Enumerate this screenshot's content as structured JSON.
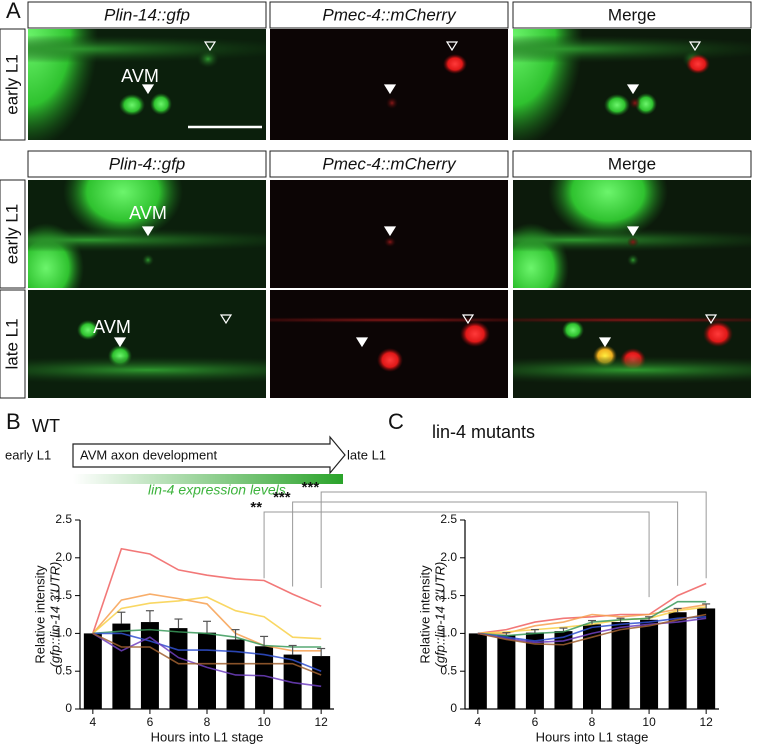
{
  "panel_a": {
    "label": "A",
    "header_rows": [
      [
        "Plin-14::gfp",
        "Pmec-4::mCherry",
        "Merge"
      ],
      [
        "Plin-4::gfp",
        "Pmec-4::mCherry",
        "Merge"
      ]
    ],
    "row_labels": [
      "early L1",
      "early L1",
      "late L1"
    ],
    "cell_labels": [
      "AVM",
      "AVM",
      "AVM"
    ]
  },
  "panel_b": {
    "label": "B",
    "title": "WT",
    "timeline": {
      "start": "early L1",
      "middle": "AVM axon development",
      "end": "late L1"
    },
    "gradient_label": "lin-4 expression levels"
  },
  "panel_c": {
    "label": "C",
    "title": "lin-4 mutants"
  },
  "significance": [
    "**",
    "***",
    "***"
  ],
  "chart_data": [
    {
      "type": "bar",
      "color": "#000000",
      "x": [
        4,
        5,
        6,
        7,
        8,
        9,
        10,
        11,
        12
      ],
      "values": [
        1.0,
        1.13,
        1.15,
        1.07,
        1.01,
        0.92,
        0.83,
        0.72,
        0.7
      ],
      "errors": [
        0,
        0.15,
        0.15,
        0.12,
        0.15,
        0.13,
        0.13,
        0.12,
        0.1
      ],
      "lines": [
        {
          "color": "#f06060",
          "values": [
            1.0,
            2.12,
            2.05,
            1.84,
            1.77,
            1.72,
            1.7,
            1.52,
            1.36
          ]
        },
        {
          "color": "#f7a050",
          "values": [
            1.0,
            1.44,
            1.52,
            1.46,
            1.39,
            1.0,
            0.84,
            0.77,
            0.77
          ]
        },
        {
          "color": "#f8d048",
          "values": [
            1.0,
            1.33,
            1.4,
            1.43,
            1.48,
            1.3,
            1.22,
            0.95,
            0.93
          ]
        },
        {
          "color": "#3a9a5a",
          "values": [
            1.0,
            1.03,
            1.05,
            1.02,
            1.0,
            0.95,
            0.84,
            0.82,
            0.82
          ]
        },
        {
          "color": "#3050d0",
          "values": [
            1.0,
            1.0,
            0.9,
            0.78,
            0.78,
            0.76,
            0.72,
            0.65,
            0.5
          ]
        },
        {
          "color": "#7040c0",
          "values": [
            1.0,
            0.77,
            0.95,
            0.68,
            0.55,
            0.45,
            0.44,
            0.35,
            0.3
          ]
        },
        {
          "color": "#a06030",
          "values": [
            1.0,
            0.82,
            0.82,
            0.6,
            0.6,
            0.6,
            0.6,
            0.6,
            0.45
          ]
        }
      ],
      "xlim": [
        3.55,
        12.45
      ],
      "xticks": [
        4,
        6,
        8,
        10,
        12
      ],
      "ylim": [
        0,
        2.5
      ],
      "yticks": [
        0,
        0.5,
        {
          "value": 1,
          "label": "1.0"
        },
        1.5,
        {
          "value": 2,
          "label": "2.0"
        },
        2.5
      ],
      "xlabel": "Hours into L1 stage",
      "ylabel": [
        "Relative intensity",
        "(gfp::lin-14 3'UTR)"
      ]
    },
    {
      "type": "bar",
      "color": "#000000",
      "x": [
        4,
        5,
        6,
        7,
        8,
        9,
        10,
        11,
        12
      ],
      "values": [
        1.0,
        0.98,
        1.01,
        1.03,
        1.12,
        1.15,
        1.18,
        1.28,
        1.33
      ],
      "errors": [
        0,
        0.03,
        0.04,
        0.04,
        0.05,
        0.05,
        0.04,
        0.05,
        0.06
      ],
      "lines": [
        {
          "color": "#f06060",
          "values": [
            1.0,
            1.05,
            1.15,
            1.2,
            1.22,
            1.25,
            1.25,
            1.5,
            1.66
          ]
        },
        {
          "color": "#f7a050",
          "values": [
            1.0,
            1.0,
            1.1,
            1.15,
            1.25,
            1.22,
            1.25,
            1.32,
            1.38
          ]
        },
        {
          "color": "#f8d048",
          "values": [
            1.0,
            1.02,
            1.05,
            1.08,
            1.12,
            1.18,
            1.2,
            1.3,
            1.35
          ]
        },
        {
          "color": "#3a9a5a",
          "values": [
            1.0,
            0.97,
            1.0,
            1.02,
            1.15,
            1.18,
            1.2,
            1.42,
            1.42
          ]
        },
        {
          "color": "#3050d0",
          "values": [
            1.0,
            0.95,
            0.9,
            0.95,
            1.08,
            1.12,
            1.15,
            1.2,
            1.22
          ]
        },
        {
          "color": "#7040c0",
          "values": [
            1.0,
            0.93,
            0.88,
            0.9,
            1.0,
            1.08,
            1.12,
            1.15,
            1.2
          ]
        },
        {
          "color": "#a06030",
          "values": [
            1.0,
            0.92,
            0.86,
            0.85,
            0.95,
            1.05,
            1.1,
            1.18,
            1.25
          ]
        }
      ],
      "xlim": [
        3.55,
        12.45
      ],
      "xticks": [
        4,
        6,
        8,
        10,
        12
      ],
      "ylim": [
        0,
        2.5
      ],
      "yticks": [
        0,
        0.5,
        {
          "value": 1,
          "label": "1.0"
        },
        1.5,
        {
          "value": 2,
          "label": "2.0"
        },
        2.5
      ],
      "xlabel": "Hours into L1 stage",
      "ylabel": [
        "Relative intensity",
        "(gfp::lin-14 3'UTR)"
      ]
    }
  ]
}
